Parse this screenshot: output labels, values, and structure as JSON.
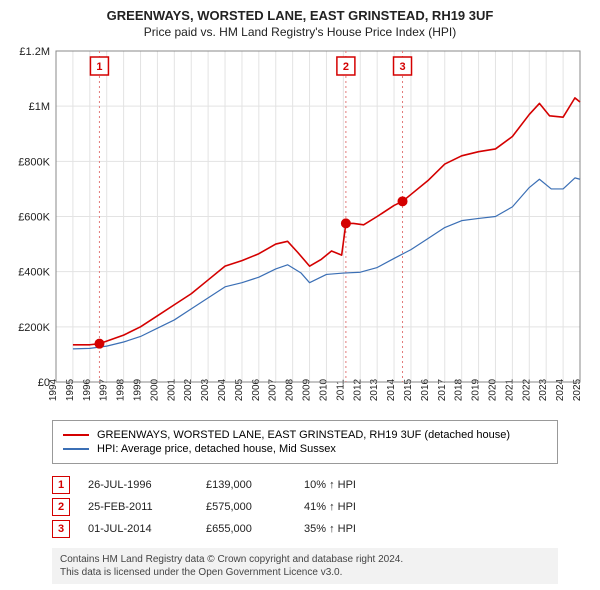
{
  "title": "GREENWAYS, WORSTED LANE, EAST GRINSTEAD, RH19 3UF",
  "subtitle": "Price paid vs. HM Land Registry's House Price Index (HPI)",
  "chart": {
    "type": "line",
    "background_color": "#ffffff",
    "grid_color": "#e3e3e3",
    "x_axis": {
      "min": 1994,
      "max": 2025,
      "ticks": [
        1994,
        1995,
        1996,
        1997,
        1998,
        1999,
        2000,
        2001,
        2002,
        2003,
        2004,
        2005,
        2006,
        2007,
        2008,
        2009,
        2010,
        2011,
        2012,
        2013,
        2014,
        2015,
        2016,
        2017,
        2018,
        2019,
        2020,
        2021,
        2022,
        2023,
        2024,
        2025
      ]
    },
    "y_axis": {
      "min": 0,
      "max": 1200000,
      "tick_step": 200000,
      "tick_labels": [
        "£0",
        "£200K",
        "£400K",
        "£600K",
        "£800K",
        "£1M",
        "£1.2M"
      ]
    },
    "series": [
      {
        "name": "property",
        "label": "GREENWAYS, WORSTED LANE, EAST GRINSTEAD, RH19 3UF (detached house)",
        "color": "#d40000",
        "width": 1.6,
        "points": [
          [
            1995.0,
            135000
          ],
          [
            1996.0,
            135000
          ],
          [
            1996.57,
            139000
          ],
          [
            1997.0,
            148000
          ],
          [
            1998.0,
            170000
          ],
          [
            1999.0,
            200000
          ],
          [
            2000.0,
            240000
          ],
          [
            2001.0,
            280000
          ],
          [
            2002.0,
            320000
          ],
          [
            2003.0,
            370000
          ],
          [
            2004.0,
            420000
          ],
          [
            2005.0,
            440000
          ],
          [
            2006.0,
            465000
          ],
          [
            2007.0,
            500000
          ],
          [
            2007.7,
            510000
          ],
          [
            2008.3,
            470000
          ],
          [
            2009.0,
            420000
          ],
          [
            2009.7,
            445000
          ],
          [
            2010.3,
            475000
          ],
          [
            2010.9,
            460000
          ],
          [
            2011.15,
            575000
          ],
          [
            2011.6,
            575000
          ],
          [
            2012.2,
            570000
          ],
          [
            2013.0,
            600000
          ],
          [
            2014.0,
            640000
          ],
          [
            2014.5,
            655000
          ],
          [
            2015.0,
            680000
          ],
          [
            2016.0,
            730000
          ],
          [
            2017.0,
            790000
          ],
          [
            2018.0,
            820000
          ],
          [
            2019.0,
            835000
          ],
          [
            2020.0,
            845000
          ],
          [
            2021.0,
            890000
          ],
          [
            2022.0,
            970000
          ],
          [
            2022.6,
            1010000
          ],
          [
            2023.2,
            965000
          ],
          [
            2024.0,
            960000
          ],
          [
            2024.7,
            1030000
          ],
          [
            2025.0,
            1015000
          ]
        ]
      },
      {
        "name": "hpi",
        "label": "HPI: Average price, detached house, Mid Sussex",
        "color": "#3b6fb5",
        "width": 1.2,
        "points": [
          [
            1995.0,
            120000
          ],
          [
            1996.0,
            122000
          ],
          [
            1997.0,
            130000
          ],
          [
            1998.0,
            145000
          ],
          [
            1999.0,
            165000
          ],
          [
            2000.0,
            195000
          ],
          [
            2001.0,
            225000
          ],
          [
            2002.0,
            265000
          ],
          [
            2003.0,
            305000
          ],
          [
            2004.0,
            345000
          ],
          [
            2005.0,
            360000
          ],
          [
            2006.0,
            380000
          ],
          [
            2007.0,
            410000
          ],
          [
            2007.7,
            425000
          ],
          [
            2008.5,
            395000
          ],
          [
            2009.0,
            360000
          ],
          [
            2010.0,
            390000
          ],
          [
            2011.0,
            395000
          ],
          [
            2012.0,
            398000
          ],
          [
            2013.0,
            415000
          ],
          [
            2014.0,
            448000
          ],
          [
            2015.0,
            480000
          ],
          [
            2016.0,
            520000
          ],
          [
            2017.0,
            560000
          ],
          [
            2018.0,
            585000
          ],
          [
            2019.0,
            593000
          ],
          [
            2020.0,
            600000
          ],
          [
            2021.0,
            635000
          ],
          [
            2022.0,
            705000
          ],
          [
            2022.6,
            735000
          ],
          [
            2023.3,
            700000
          ],
          [
            2024.0,
            700000
          ],
          [
            2024.7,
            740000
          ],
          [
            2025.0,
            735000
          ]
        ]
      }
    ],
    "sale_markers": [
      {
        "n": "1",
        "year": 1996.57,
        "price": 139000,
        "color": "#d40000"
      },
      {
        "n": "2",
        "year": 2011.15,
        "price": 575000,
        "color": "#d40000"
      },
      {
        "n": "3",
        "year": 2014.5,
        "price": 655000,
        "color": "#d40000"
      }
    ],
    "marker_line_color": "#e37b7b",
    "marker_dot_radius": 5
  },
  "legend": {
    "series1_label": "GREENWAYS, WORSTED LANE, EAST GRINSTEAD, RH19 3UF (detached house)",
    "series1_color": "#d40000",
    "series2_label": "HPI: Average price, detached house, Mid Sussex",
    "series2_color": "#3b6fb5"
  },
  "sales_table": [
    {
      "n": "1",
      "date": "26-JUL-1996",
      "price": "£139,000",
      "delta": "10% ↑ HPI",
      "color": "#d40000"
    },
    {
      "n": "2",
      "date": "25-FEB-2011",
      "price": "£575,000",
      "delta": "41% ↑ HPI",
      "color": "#d40000"
    },
    {
      "n": "3",
      "date": "01-JUL-2014",
      "price": "£655,000",
      "delta": "35% ↑ HPI",
      "color": "#d40000"
    }
  ],
  "footer_line1": "Contains HM Land Registry data © Crown copyright and database right 2024.",
  "footer_line2": "This data is licensed under the Open Government Licence v3.0."
}
